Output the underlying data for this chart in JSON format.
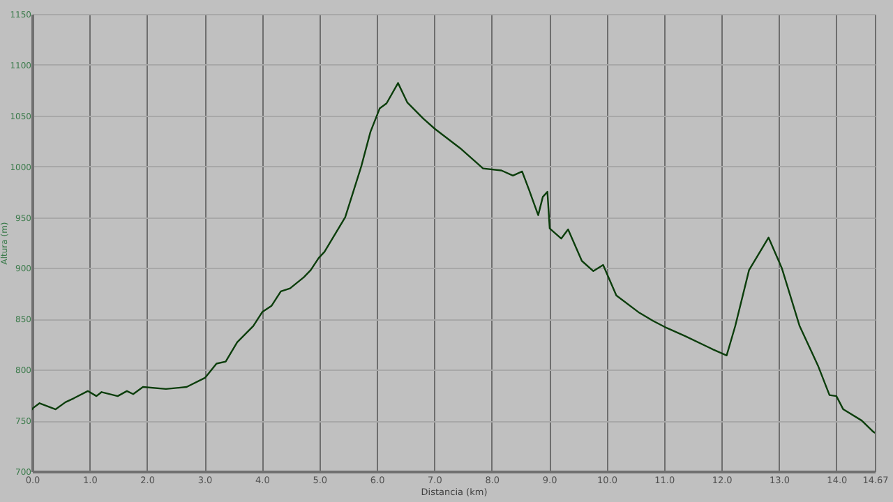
{
  "chart_data": {
    "type": "line",
    "xlabel": "Distancia (km)",
    "ylabel": "Altura (m)",
    "x": [
      0,
      0.01,
      0.13,
      0.41,
      0.58,
      0.73,
      0.97,
      1.12,
      1.21,
      1.49,
      1.65,
      1.76,
      1.93,
      2.33,
      2.69,
      3.01,
      3.21,
      3.37,
      3.57,
      3.85,
      4.01,
      4.17,
      4.33,
      4.49,
      4.73,
      4.85,
      4.99,
      5.09,
      5.45,
      5.73,
      5.89,
      6.05,
      6.17,
      6.37,
      6.53,
      6.81,
      7.01,
      7.45,
      7.85,
      8.17,
      8.37,
      8.53,
      8.65,
      8.81,
      8.89,
      8.97,
      9.01,
      9.21,
      9.33,
      9.57,
      9.77,
      9.94,
      10.17,
      10.57,
      10.81,
      11.05,
      11.37,
      11.85,
      12.09,
      12.24,
      12.48,
      12.64,
      12.82,
      13.05,
      13.36,
      13.68,
      13.88,
      14.0,
      14.12,
      14.44,
      14.64,
      14.67
    ],
    "series": [
      {
        "color": "#0b3d0b",
        "values": [
          761,
          762,
          767,
          761,
          768,
          772,
          779,
          774,
          778,
          774,
          779,
          776,
          783,
          781,
          783,
          792,
          806,
          808,
          827,
          843,
          857,
          863,
          877,
          880,
          891,
          898,
          910,
          916,
          950,
          1000,
          1034,
          1057,
          1062,
          1082,
          1063,
          1047,
          1037,
          1018,
          998,
          996,
          991,
          995,
          977,
          952,
          970,
          975,
          939,
          929,
          938,
          907,
          897,
          903,
          873,
          856,
          848,
          841,
          833,
          820,
          814,
          843,
          898,
          913,
          930,
          900,
          843,
          804,
          775,
          774,
          761,
          750,
          739,
          738
        ]
      }
    ],
    "xlim": [
      0,
      14.67
    ],
    "ylim": [
      700,
      1150
    ],
    "xticks": [
      {
        "value": 0,
        "label": "0.0"
      },
      {
        "value": 1,
        "label": "1.0"
      },
      {
        "value": 2,
        "label": "2.0"
      },
      {
        "value": 3,
        "label": "3.0"
      },
      {
        "value": 4,
        "label": "4.0"
      },
      {
        "value": 5,
        "label": "5.0"
      },
      {
        "value": 6,
        "label": "6.0"
      },
      {
        "value": 7,
        "label": "7.0"
      },
      {
        "value": 8,
        "label": "8.0"
      },
      {
        "value": 9,
        "label": "9.0"
      },
      {
        "value": 10,
        "label": "10.0"
      },
      {
        "value": 11,
        "label": "11.0"
      },
      {
        "value": 12,
        "label": "12.0"
      },
      {
        "value": 13,
        "label": "13.0"
      },
      {
        "value": 14,
        "label": "14.0"
      },
      14.67
    ],
    "yticks": [
      700,
      750,
      800,
      850,
      900,
      950,
      1000,
      1050,
      1100,
      1150
    ],
    "grid": true,
    "marker": "none",
    "line_style": "solid"
  }
}
